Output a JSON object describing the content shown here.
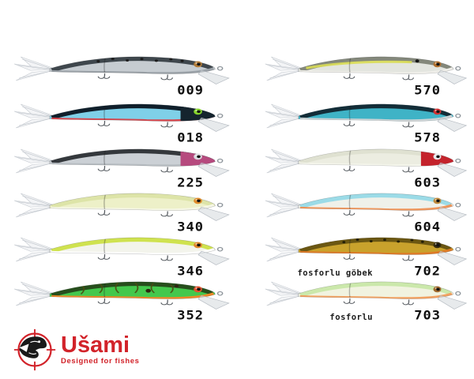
{
  "brand": {
    "name": "Ušami",
    "tagline": "Designed for fishes",
    "color": "#d2232a",
    "icon": "fish-crosshair-icon"
  },
  "catalog": {
    "items": [
      {
        "code": "009",
        "column": 0,
        "row": 0,
        "note": "",
        "colors": {
          "back": "#3f474d",
          "body": "#c6ccd1",
          "belly": "#9aa1a7",
          "spots": "#1c1c1c",
          "eye": "#b07a36"
        }
      },
      {
        "code": "018",
        "column": 0,
        "row": 1,
        "note": "",
        "colors": {
          "back": "#101f2b",
          "body": "#7fd0e8",
          "belly": "#d7454c",
          "head": "#15242e",
          "eye": "#86d42c"
        }
      },
      {
        "code": "225",
        "column": 0,
        "row": 2,
        "note": "",
        "colors": {
          "back": "#34383c",
          "body": "#cbd0d5",
          "belly": "#b7bdc2",
          "head": "#b64a7e",
          "eye": "#dadbe0"
        }
      },
      {
        "code": "340",
        "column": 0,
        "row": 3,
        "note": "",
        "colors": {
          "back": "#dde4a8",
          "body": "#edf0c8",
          "belly": "#f6f7e6",
          "eye": "#df8b2b"
        }
      },
      {
        "code": "346",
        "column": 0,
        "row": 4,
        "note": "",
        "colors": {
          "back": "#cfe24f",
          "body": "#f3f4ec",
          "belly": "#ffffff",
          "eye": "#e0862a"
        }
      },
      {
        "code": "352",
        "column": 0,
        "row": 5,
        "note": "",
        "colors": {
          "back": "#274e1c",
          "body": "#43c84c",
          "belly": "#ef8728",
          "stripes": "#4c4c12",
          "dot": "#2f2410",
          "dot2": "#2f2410",
          "eye": "#e0502c"
        }
      },
      {
        "code": "570",
        "column": 1,
        "row": 0,
        "note": "",
        "colors": {
          "back": "#84887b",
          "body": "#e3e5df",
          "belly": "#efeee9",
          "lateral": "#d9dd55",
          "dot": "#141414",
          "eye": "#b0702e"
        }
      },
      {
        "code": "578",
        "column": 1,
        "row": 1,
        "note": "",
        "colors": {
          "back": "#132d38",
          "body": "#3fb3c6",
          "belly": "#ccd4d6",
          "eye": "#cf3232"
        }
      },
      {
        "code": "603",
        "column": 1,
        "row": 2,
        "note": "",
        "colors": {
          "back": "#dfe1d1",
          "body": "#ecede1",
          "belly": "#f5f6ec",
          "head": "#c4232c",
          "eye": "#e6e7ea"
        }
      },
      {
        "code": "604",
        "column": 1,
        "row": 3,
        "note": "",
        "colors": {
          "back": "#9bdbe7",
          "body": "#eff1ea",
          "belly": "#ef965b",
          "eye": "#bf8a3c"
        }
      },
      {
        "code": "702",
        "column": 1,
        "row": 4,
        "note": "fosforlu göbek",
        "colors": {
          "back": "#6b5712",
          "body": "#c9a22c",
          "belly": "#de7a27",
          "spots": "#241f06",
          "eye": "#352b0e"
        }
      },
      {
        "code": "703",
        "column": 1,
        "row": 5,
        "note": "fosforlu",
        "colors": {
          "back": "#cbe8ab",
          "body": "#f1f3e0",
          "belly": "#f1a161",
          "eye": "#a06a2e"
        }
      }
    ]
  }
}
